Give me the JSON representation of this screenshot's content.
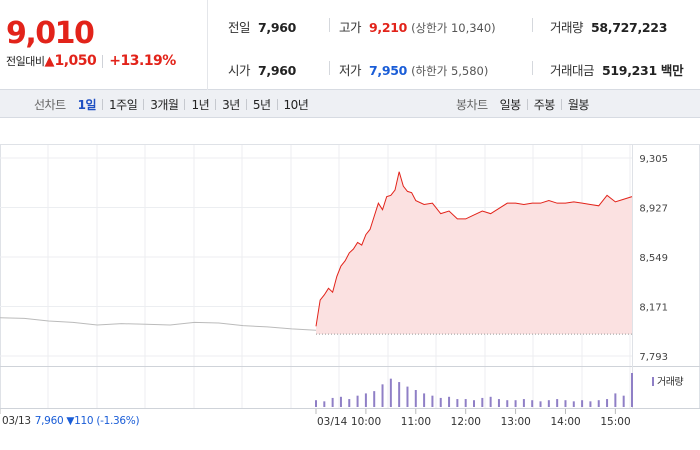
{
  "quote": {
    "price": "9,010",
    "change_label": "전일대비",
    "change_arrow": "▲",
    "change_value": "1,050",
    "change_rate": "+13.19%"
  },
  "info": {
    "prev_close_label": "전일",
    "prev_close": "7,960",
    "high_label": "고가",
    "high": "9,210",
    "upper_limit": "(상한가 10,340)",
    "volume_label": "거래량",
    "volume": "58,727,223",
    "open_label": "시가",
    "open": "7,960",
    "low_label": "저가",
    "low": "7,950",
    "lower_limit": "(하한가 5,580)",
    "amount_label": "거래대금",
    "amount": "519,231 백만"
  },
  "tabs": {
    "line_head": "선차트",
    "line": [
      "1일",
      "1주일",
      "3개월",
      "1년",
      "3년",
      "5년",
      "10년"
    ],
    "line_active": 0,
    "candle_head": "봉차트",
    "candle": [
      "일봉",
      "주봉",
      "월봉"
    ]
  },
  "chart_labels": {
    "volume_legend": "거래량",
    "prev_date": "03/13",
    "prev_price": "7,960",
    "prev_change": "▼110 (-1.36%)"
  },
  "colors": {
    "up": "#e2231a",
    "down": "#1a5dd7",
    "volume": "#8f7fc6",
    "prev_line": "#bbbbbb",
    "fill": "#fbe1e1"
  },
  "chart_data": {
    "type": "line",
    "title": "",
    "xlabel": "",
    "ylabel": "",
    "ylim": [
      7793,
      9305
    ],
    "y_ticks": [
      9305,
      8927,
      8549,
      8171,
      7793
    ],
    "x_ticks": [
      "03/13",
      "03/14",
      "10:00",
      "11:00",
      "12:00",
      "13:00",
      "14:00",
      "15:00"
    ],
    "grid": true,
    "legend": "right",
    "baseline": 7960,
    "series": [
      {
        "name": "",
        "x": [
          "03/13 09:00",
          "03/13 09:30",
          "03/13 10:00",
          "03/13 10:30",
          "03/13 11:00",
          "03/13 11:30",
          "03/13 12:00",
          "03/13 12:30",
          "03/13 13:00",
          "03/13 13:30",
          "03/13 14:00",
          "03/13 14:30",
          "03/13 15:00",
          "03/13 15:30"
        ],
        "values": [
          8085,
          8080,
          8060,
          8050,
          8030,
          8040,
          8035,
          8030,
          8050,
          8045,
          8025,
          8015,
          8000,
          7990
        ]
      },
      {
        "name": "",
        "x": [
          "09:00",
          "09:05",
          "09:10",
          "09:15",
          "09:20",
          "09:25",
          "09:30",
          "09:35",
          "09:40",
          "09:45",
          "09:50",
          "09:55",
          "10:00",
          "10:05",
          "10:10",
          "10:15",
          "10:20",
          "10:25",
          "10:30",
          "10:35",
          "10:40",
          "10:45",
          "10:50",
          "10:55",
          "11:00",
          "11:10",
          "11:20",
          "11:30",
          "11:40",
          "11:50",
          "12:00",
          "12:10",
          "12:20",
          "12:30",
          "12:40",
          "12:50",
          "13:00",
          "13:10",
          "13:20",
          "13:30",
          "13:40",
          "13:50",
          "14:00",
          "14:10",
          "14:20",
          "14:30",
          "14:40",
          "14:50",
          "15:00",
          "15:10",
          "15:20"
        ],
        "values": [
          8020,
          8220,
          8260,
          8310,
          8280,
          8400,
          8480,
          8520,
          8580,
          8610,
          8660,
          8640,
          8720,
          8760,
          8860,
          8960,
          8910,
          9010,
          9020,
          9060,
          9200,
          9090,
          9050,
          9040,
          8980,
          8950,
          8960,
          8880,
          8900,
          8840,
          8840,
          8870,
          8900,
          8880,
          8920,
          8960,
          8960,
          8950,
          8960,
          8960,
          8980,
          8960,
          8960,
          8970,
          8960,
          8950,
          8940,
          9020,
          8970,
          8990,
          9010
        ]
      }
    ],
    "volume": {
      "name": "거래량",
      "times": [
        "09:00",
        "09:10",
        "09:20",
        "09:30",
        "09:40",
        "09:50",
        "10:00",
        "10:10",
        "10:20",
        "10:30",
        "10:40",
        "10:50",
        "11:00",
        "11:10",
        "11:20",
        "11:30",
        "11:40",
        "11:50",
        "12:00",
        "12:10",
        "12:20",
        "12:30",
        "12:40",
        "12:50",
        "13:00",
        "13:10",
        "13:20",
        "13:30",
        "13:40",
        "13:50",
        "14:00",
        "14:10",
        "14:20",
        "14:30",
        "14:40",
        "14:50",
        "15:00",
        "15:10",
        "15:20"
      ],
      "values": [
        6,
        5,
        8,
        9,
        7,
        10,
        12,
        14,
        20,
        25,
        22,
        18,
        15,
        12,
        10,
        8,
        9,
        7,
        7,
        6,
        8,
        9,
        7,
        6,
        6,
        7,
        6,
        5,
        6,
        7,
        6,
        5,
        6,
        5,
        6,
        7,
        12,
        10,
        30
      ]
    }
  }
}
